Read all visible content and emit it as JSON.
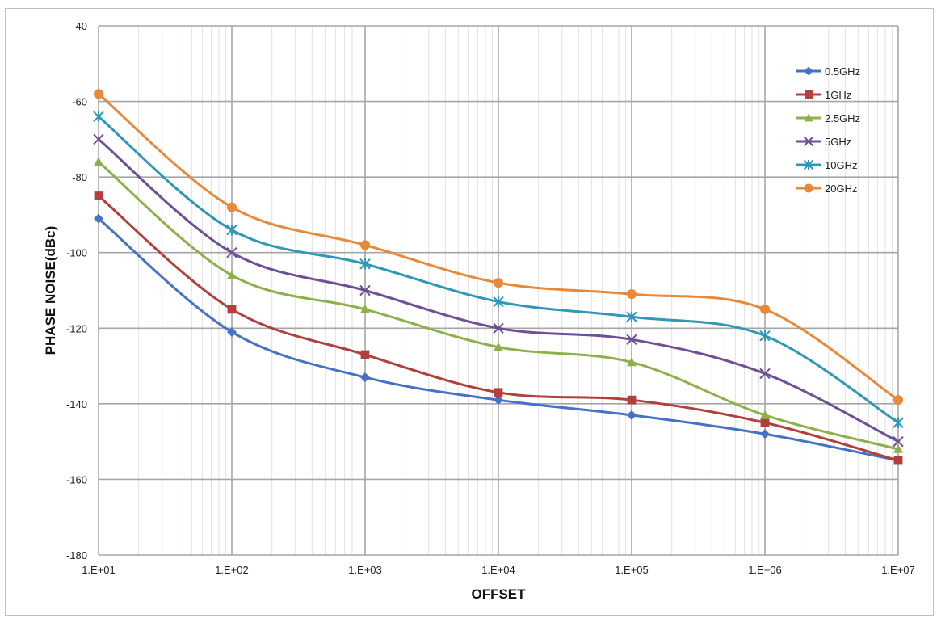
{
  "chart_data": {
    "type": "line",
    "xlabel": "OFFSET",
    "ylabel": "PHASE NOISE(dBc)",
    "x_scale": "log",
    "x": [
      10,
      100,
      1000,
      10000,
      100000,
      1000000,
      10000000
    ],
    "x_tick_labels": [
      "1.E+01",
      "1.E+02",
      "1.E+03",
      "1.E+04",
      "1.E+05",
      "1.E+06",
      "1.E+07"
    ],
    "xlim": [
      10,
      10000000
    ],
    "ylim": [
      -180,
      -40
    ],
    "y_ticks": [
      -40,
      -60,
      -80,
      -100,
      -120,
      -140,
      -160,
      -180
    ],
    "grid": true,
    "legend_position": "top-right",
    "series": [
      {
        "name": "0.5GHz",
        "color": "#4472C4",
        "marker": "diamond",
        "values": [
          -91,
          -121,
          -133,
          -139,
          -143,
          -148,
          -155
        ]
      },
      {
        "name": "1GHz",
        "color": "#B13F3C",
        "marker": "square",
        "values": [
          -85,
          -115,
          -127,
          -137,
          -139,
          -145,
          -155
        ]
      },
      {
        "name": "2.5GHz",
        "color": "#8DB04A",
        "marker": "triangle",
        "values": [
          -76,
          -106,
          -115,
          -125,
          -129,
          -143,
          -152
        ]
      },
      {
        "name": "5GHz",
        "color": "#6E4F96",
        "marker": "x",
        "values": [
          -70,
          -100,
          -110,
          -120,
          -123,
          -132,
          -150
        ]
      },
      {
        "name": "10GHz",
        "color": "#2F97B8",
        "marker": "star",
        "values": [
          -64,
          -94,
          -103,
          -113,
          -117,
          -122,
          -145
        ]
      },
      {
        "name": "20GHz",
        "color": "#E8893A",
        "marker": "circle",
        "values": [
          -58,
          -88,
          -98,
          -108,
          -111,
          -115,
          -139
        ]
      }
    ]
  }
}
